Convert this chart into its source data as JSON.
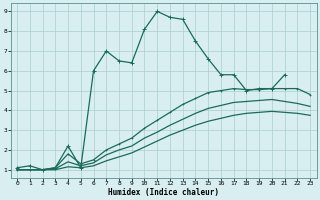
{
  "xlabel": "Humidex (Indice chaleur)",
  "background_color": "#d8eef0",
  "grid_color": "#aacece",
  "line_color": "#1a6b5a",
  "xlim": [
    -0.5,
    23.5
  ],
  "ylim": [
    0.6,
    9.4
  ],
  "xticks": [
    0,
    1,
    2,
    3,
    4,
    5,
    6,
    7,
    8,
    9,
    10,
    11,
    12,
    13,
    14,
    15,
    16,
    17,
    18,
    19,
    20,
    21,
    22,
    23
  ],
  "yticks": [
    1,
    2,
    3,
    4,
    5,
    6,
    7,
    8,
    9
  ],
  "line1_x": [
    0,
    1,
    2,
    3,
    4,
    5,
    6,
    7,
    8,
    9,
    10,
    11,
    12,
    13,
    14,
    15,
    16,
    17,
    18,
    19,
    20,
    21
  ],
  "line1_y": [
    1.1,
    1.2,
    1.0,
    1.1,
    2.2,
    1.1,
    6.0,
    7.0,
    6.5,
    6.4,
    8.1,
    9.0,
    8.7,
    8.6,
    7.5,
    6.6,
    5.8,
    5.8,
    5.0,
    5.1,
    5.1,
    5.8
  ],
  "line2_x": [
    0,
    1,
    2,
    3,
    4,
    5,
    6,
    7,
    8,
    9,
    10,
    11,
    12,
    13,
    14,
    15,
    16,
    17,
    18,
    19,
    20,
    21,
    22,
    23
  ],
  "line2_y": [
    1.0,
    1.0,
    1.0,
    1.1,
    1.8,
    1.3,
    1.5,
    2.0,
    2.3,
    2.6,
    3.1,
    3.5,
    3.9,
    4.3,
    4.6,
    4.9,
    5.0,
    5.1,
    5.05,
    5.05,
    5.1,
    5.1,
    5.1,
    4.8
  ],
  "line3_x": [
    0,
    1,
    2,
    3,
    4,
    5,
    6,
    7,
    8,
    9,
    10,
    11,
    12,
    13,
    14,
    15,
    16,
    17,
    18,
    19,
    20,
    21,
    22,
    23
  ],
  "line3_y": [
    1.0,
    1.0,
    1.0,
    1.05,
    1.4,
    1.2,
    1.35,
    1.75,
    2.0,
    2.2,
    2.6,
    2.9,
    3.25,
    3.55,
    3.85,
    4.1,
    4.25,
    4.4,
    4.45,
    4.5,
    4.55,
    4.45,
    4.35,
    4.2
  ],
  "line4_x": [
    0,
    1,
    2,
    3,
    4,
    5,
    6,
    7,
    8,
    9,
    10,
    11,
    12,
    13,
    14,
    15,
    16,
    17,
    18,
    19,
    20,
    21,
    22,
    23
  ],
  "line4_y": [
    1.0,
    1.0,
    1.0,
    1.0,
    1.15,
    1.1,
    1.2,
    1.45,
    1.65,
    1.85,
    2.15,
    2.45,
    2.75,
    3.0,
    3.25,
    3.45,
    3.6,
    3.75,
    3.85,
    3.9,
    3.95,
    3.9,
    3.85,
    3.75
  ]
}
